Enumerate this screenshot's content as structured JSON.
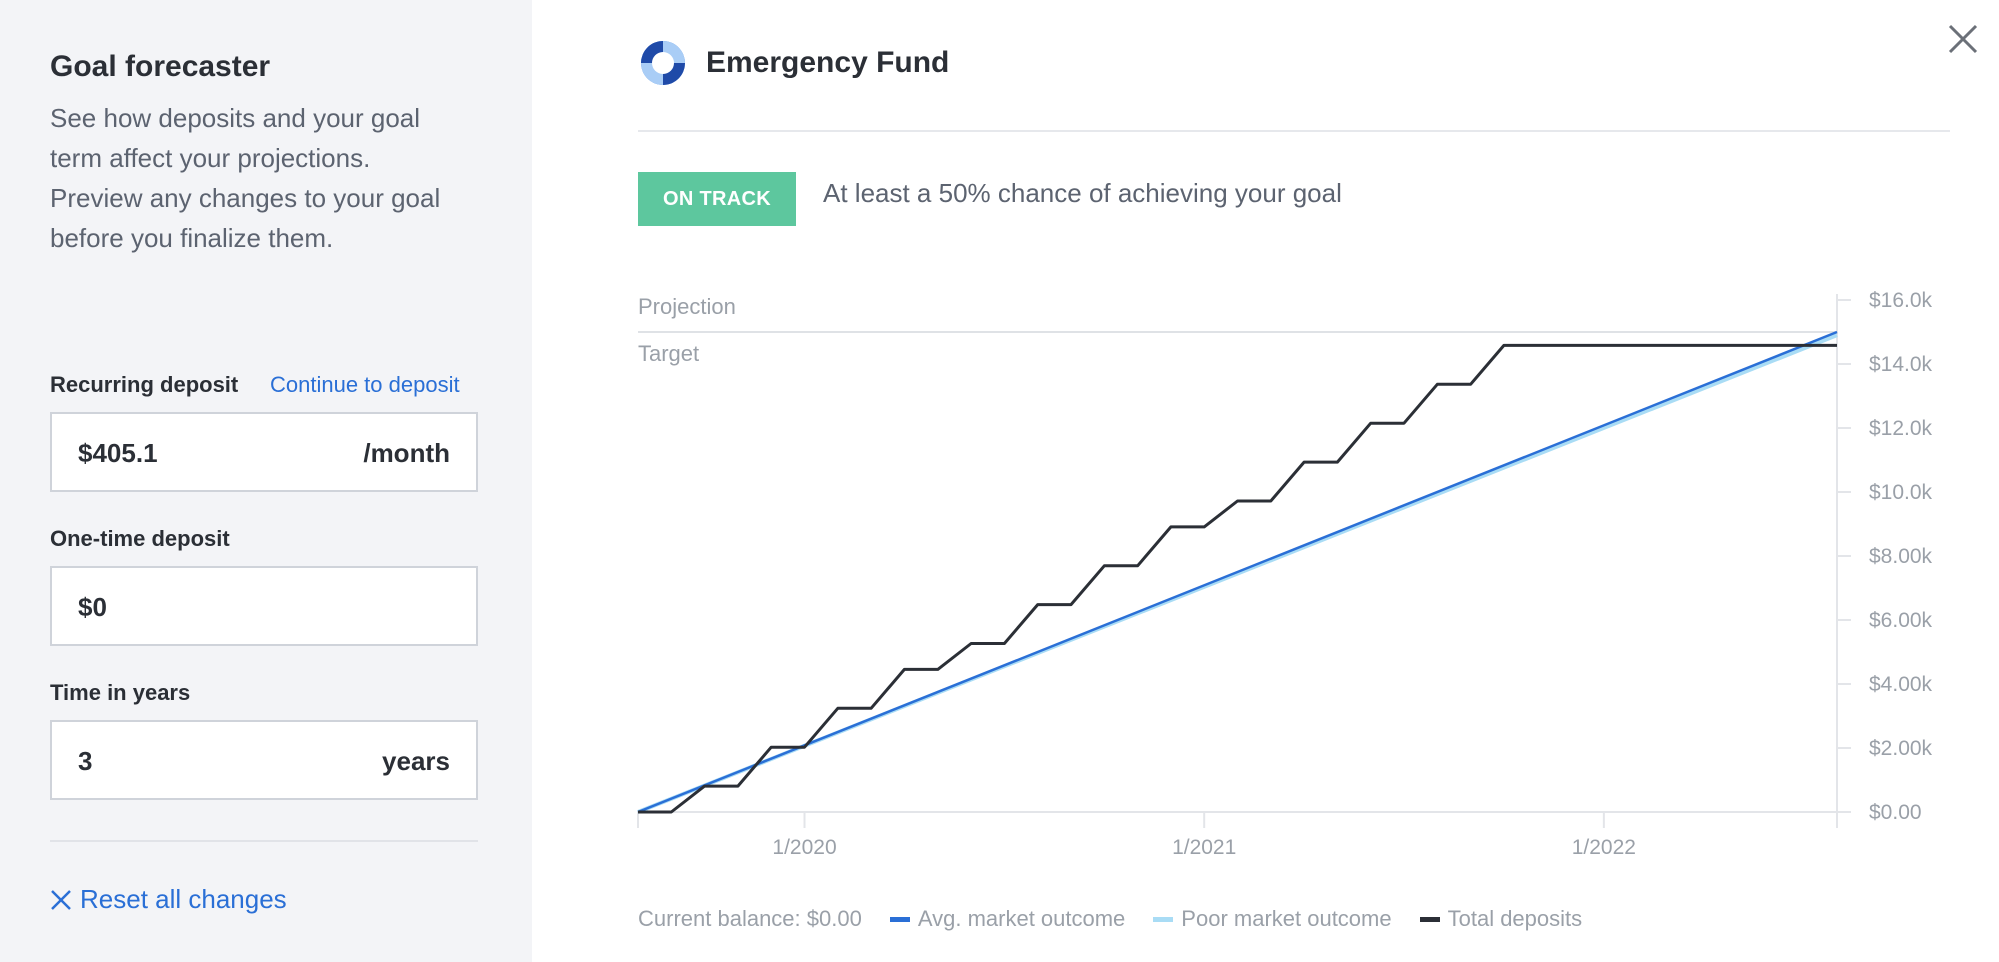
{
  "sidebar": {
    "title": "Goal forecaster",
    "description": "See how deposits and your goal term affect your projections. Preview any changes to your goal before you finalize them.",
    "recurring": {
      "label": "Recurring deposit",
      "link": "Continue to deposit",
      "value": "$405.1",
      "unit": "/month"
    },
    "one_time": {
      "label": "One-time deposit",
      "value": "$0"
    },
    "time": {
      "label": "Time in years",
      "value": "3",
      "unit": "years"
    },
    "reset_label": "Reset all changes"
  },
  "goal": {
    "title": "Emergency Fund",
    "icon": "life-ring-icon",
    "status_badge": "ON TRACK",
    "status_text": "At least a 50% chance of achieving your goal"
  },
  "colors": {
    "accent": "#2a6fd6",
    "on_track": "#5dc79e",
    "avg_outcome": "#2a6fd6",
    "poor_outcome": "#a9dcf5",
    "total_deposits": "#2b2f36"
  },
  "chart_data": {
    "type": "line",
    "labels": {
      "projection": "Projection",
      "target": "Target"
    },
    "x_ticks": [
      "1/2020",
      "1/2021",
      "1/2022"
    ],
    "y_ticks": [
      "$0.00",
      "$2.00k",
      "$4.00k",
      "$6.00k",
      "$8.00k",
      "$10.0k",
      "$12.0k",
      "$14.0k",
      "$16.0k"
    ],
    "ylim": [
      0,
      16000
    ],
    "xlim": [
      "2019-08",
      "2022-08"
    ],
    "target": 15000,
    "series": [
      {
        "name": "Avg. market outcome",
        "x": [
          "2019-08",
          "2022-08"
        ],
        "y": [
          0,
          15000
        ]
      },
      {
        "name": "Poor market outcome",
        "x": [
          "2019-08",
          "2022-08"
        ],
        "y": [
          0,
          14900
        ]
      },
      {
        "name": "Total deposits",
        "step": true,
        "x": [
          "2019-08",
          "2019-09",
          "2019-10",
          "2019-11",
          "2019-12",
          "2020-01",
          "2020-02",
          "2020-03",
          "2020-04",
          "2020-05",
          "2020-06",
          "2020-07",
          "2020-08",
          "2020-09",
          "2020-10",
          "2020-11",
          "2020-12",
          "2021-01",
          "2021-02",
          "2021-03",
          "2021-04",
          "2021-05",
          "2021-06",
          "2021-07",
          "2021-08",
          "2021-09",
          "2021-10",
          "2021-11",
          "2021-12",
          "2022-01",
          "2022-02",
          "2022-03",
          "2022-04",
          "2022-05",
          "2022-06",
          "2022-07",
          "2022-08"
        ],
        "y": [
          0,
          0,
          810,
          810,
          2025,
          2025,
          3240,
          3240,
          4455,
          4455,
          5265,
          5265,
          6480,
          6480,
          7695,
          7695,
          8910,
          8910,
          9720,
          9720,
          10935,
          10935,
          12150,
          12150,
          13365,
          13365,
          14580,
          14580,
          14580,
          14580,
          14580,
          14580,
          14580,
          14580,
          14580,
          14580,
          14580
        ]
      }
    ],
    "current_balance": "Current balance: $0.00",
    "legend": [
      "Avg. market outcome",
      "Poor market outcome",
      "Total deposits"
    ],
    "legend_position": "bottom"
  }
}
